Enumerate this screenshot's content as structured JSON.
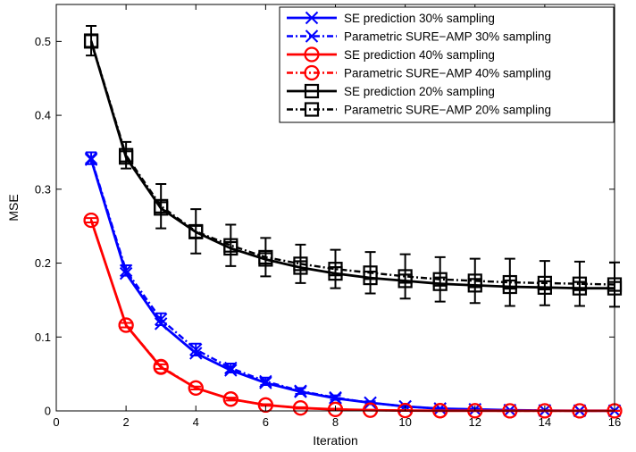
{
  "chart_data": {
    "type": "line",
    "title": "",
    "xlabel": "Iteration",
    "ylabel": "MSE",
    "xlim": [
      0,
      16
    ],
    "ylim": [
      0,
      0.55
    ],
    "xticks": [
      0,
      2,
      4,
      6,
      8,
      10,
      12,
      14,
      16
    ],
    "xtick_labels": [
      "0",
      "2",
      "4",
      "6",
      "8",
      "10",
      "12",
      "14",
      "16"
    ],
    "yticks": [
      0,
      0.1,
      0.2,
      0.3,
      0.4,
      0.5
    ],
    "ytick_labels": [
      "0",
      "0.1",
      "0.2",
      "0.3",
      "0.4",
      "0.5"
    ],
    "grid": false,
    "legend_position": "top-right",
    "x": [
      1,
      2,
      3,
      4,
      5,
      6,
      7,
      8,
      9,
      10,
      11,
      12,
      13,
      14,
      15,
      16
    ],
    "series": [
      {
        "name": "SE prediction 30% sampling",
        "color": "#0000ff",
        "line": "solid",
        "marker": "x",
        "values": [
          0.34,
          0.186,
          0.118,
          0.078,
          0.055,
          0.038,
          0.026,
          0.017,
          0.011,
          0.006,
          0.003,
          0.002,
          0.001,
          0.0005,
          0.0003,
          0.0002
        ]
      },
      {
        "name": "Parametric SURE−AMP 30% sampling",
        "color": "#0000ff",
        "line": "dashdot",
        "marker": "x",
        "values": [
          0.342,
          0.19,
          0.124,
          0.083,
          0.058,
          0.04,
          0.027,
          0.018,
          0.011,
          0.006,
          0.003,
          0.002,
          0.001,
          0.0005,
          0.0003,
          0.0002
        ],
        "errors": [
          0.008,
          0.007,
          0.008,
          0.008,
          0.006,
          0.005,
          0.004,
          0.003,
          0.002,
          0.001,
          0.001,
          0.001,
          0.0005,
          0.0005,
          0.0003,
          0.0002
        ]
      },
      {
        "name": "SE prediction 40% sampling",
        "color": "#ff0000",
        "line": "solid",
        "marker": "circle",
        "values": [
          0.258,
          0.116,
          0.059,
          0.031,
          0.016,
          0.008,
          0.004,
          0.002,
          0.001,
          0.0005,
          0.0003,
          0.0002,
          0.0001,
          0.0001,
          0.0001,
          0.0001
        ]
      },
      {
        "name": "Parametric SURE−AMP 40% sampling",
        "color": "#ff0000",
        "line": "dashdot",
        "marker": "circle",
        "values": [
          0.258,
          0.116,
          0.06,
          0.031,
          0.016,
          0.008,
          0.004,
          0.002,
          0.001,
          0.0005,
          0.0003,
          0.0002,
          0.0001,
          0.0001,
          0.0001,
          0.0001
        ],
        "errors": [
          0.003,
          0.003,
          0.003,
          0.002,
          0.002,
          0.001,
          0.001,
          0.001,
          0.0005,
          0.0005,
          0.0003,
          0.0002,
          0.0001,
          0.0001,
          0.0001,
          0.0001
        ]
      },
      {
        "name": "SE prediction 20% sampling",
        "color": "#000000",
        "line": "solid",
        "marker": "square",
        "values": [
          0.5,
          0.343,
          0.274,
          0.242,
          0.22,
          0.205,
          0.194,
          0.186,
          0.18,
          0.176,
          0.172,
          0.17,
          0.168,
          0.167,
          0.166,
          0.166
        ]
      },
      {
        "name": "Parametric SURE−AMP 20% sampling",
        "color": "#000000",
        "line": "dashdot",
        "marker": "square",
        "values": [
          0.501,
          0.346,
          0.277,
          0.243,
          0.224,
          0.208,
          0.199,
          0.192,
          0.187,
          0.182,
          0.178,
          0.176,
          0.174,
          0.173,
          0.172,
          0.171
        ],
        "errors": [
          0.02,
          0.018,
          0.03,
          0.03,
          0.028,
          0.026,
          0.026,
          0.026,
          0.028,
          0.03,
          0.03,
          0.03,
          0.032,
          0.03,
          0.03,
          0.03
        ]
      }
    ]
  }
}
